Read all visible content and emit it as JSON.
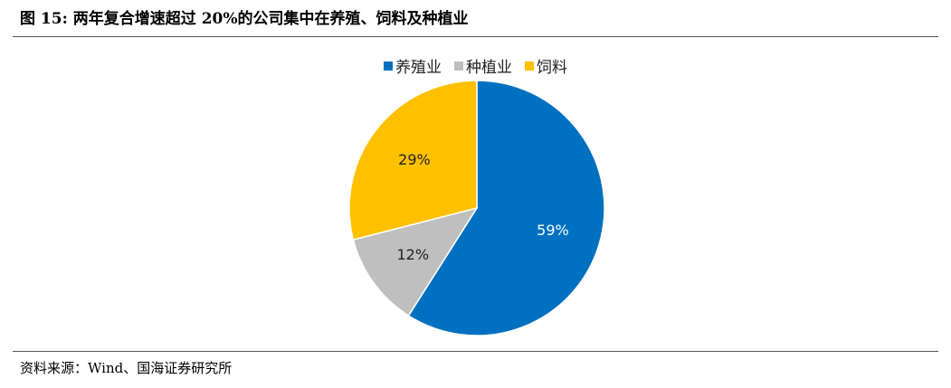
{
  "figure": {
    "title": "图 15:    两年复合增速超过 20%的公司集中在养殖、饲料及种植业"
  },
  "source": "资料来源：Wind、国海证券研究所",
  "chart_data": {
    "type": "pie",
    "title": "",
    "legend_position": "top",
    "slices": [
      {
        "name": "养殖业",
        "value": 59,
        "label": "59%",
        "color": "#0070C0",
        "label_color": "#FFFFFF"
      },
      {
        "name": "种植业",
        "value": 12,
        "label": "12%",
        "color": "#BFBFBF",
        "label_color": "#222222"
      },
      {
        "name": "饲料",
        "value": 29,
        "label": "29%",
        "color": "#FFC000",
        "label_color": "#222222"
      }
    ]
  }
}
